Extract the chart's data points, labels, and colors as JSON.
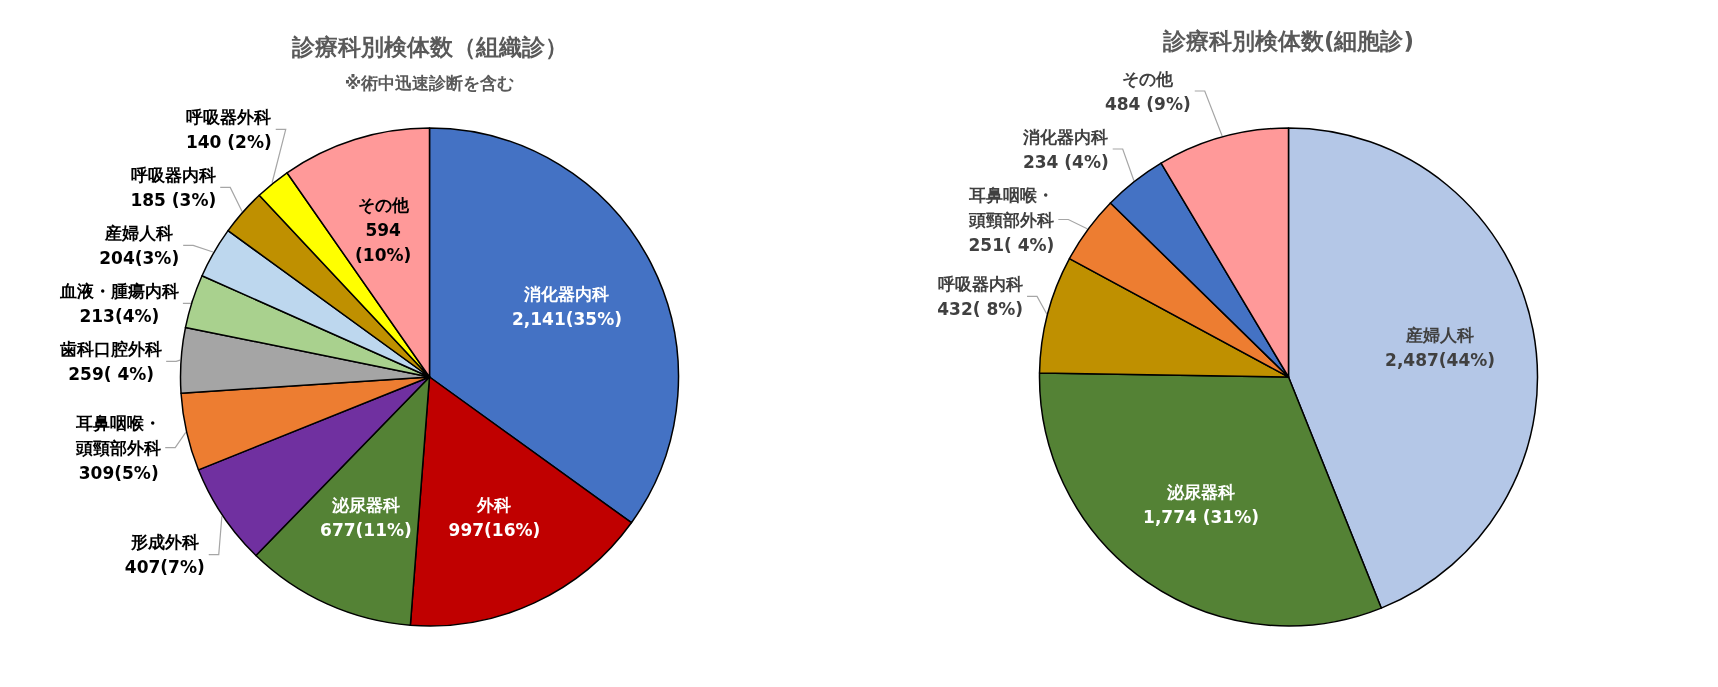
{
  "chart_data": [
    {
      "type": "pie",
      "title": "診療科別検体数（組織診）",
      "subtitle": "※術中迅速診断を含む",
      "categories": [
        "消化器内科",
        "外科",
        "泌尿器科",
        "形成外科",
        "耳鼻咽喉・頭頸部外科",
        "歯科口腔外科",
        "血液・腫瘍内科",
        "産婦人科",
        "呼吸器内科",
        "呼吸器外科",
        "その他"
      ],
      "values": [
        2141,
        997,
        677,
        407,
        309,
        259,
        213,
        204,
        185,
        140,
        594
      ],
      "colors": [
        "#4472c4",
        "#c00000",
        "#548235",
        "#7030a0",
        "#ed7d31",
        "#a5a5a5",
        "#a9d18e",
        "#bdd7ee",
        "#bf9000",
        "#ffff00",
        "#ff9999"
      ],
      "value_labels": [
        "2,141(35%)",
        "997(16%)",
        "677(11%)",
        "407(7%)",
        "309(5%)",
        "259( 4%)",
        "213(4%)",
        "204(3%)",
        "185 (3%)",
        "140 (2%)",
        "594\n(10%)"
      ]
    },
    {
      "type": "pie",
      "title": "診療科別検体数(細胞診)",
      "categories": [
        "産婦人科",
        "泌尿器科",
        "呼吸器内科",
        "耳鼻咽喉・頭頸部外科",
        "消化器内科",
        "その他"
      ],
      "values": [
        2487,
        1774,
        432,
        251,
        234,
        484
      ],
      "colors": [
        "#b4c7e7",
        "#548235",
        "#bf9000",
        "#ed7d31",
        "#4472c4",
        "#ff9999"
      ],
      "value_labels": [
        "2,487(44%)",
        "1,774 (31%)",
        "432( 8%)",
        "251( 4%)",
        "234 (4%)",
        "484 (9%)"
      ]
    }
  ]
}
